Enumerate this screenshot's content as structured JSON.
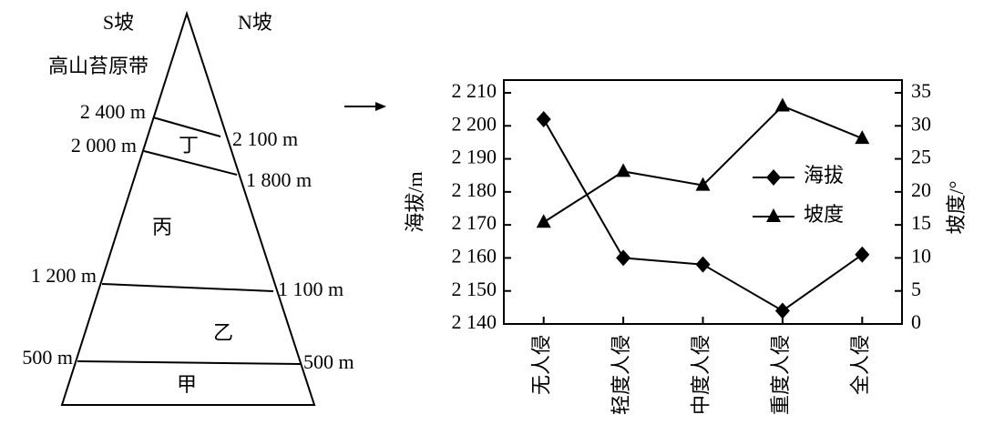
{
  "diagram": {
    "slope_labels": [
      "S坡",
      "N坡"
    ],
    "top_label": "高山苔原带",
    "left_labels": [
      "2 400 m",
      "2 000 m",
      "1 200 m",
      "500 m"
    ],
    "right_labels": [
      "2 100 m",
      "1 800 m",
      "1 100 m",
      "500 m"
    ],
    "zones": [
      "丁",
      "丙",
      "乙",
      "甲"
    ]
  },
  "chart_data": {
    "type": "line",
    "categories": [
      "无人侵",
      "轻度人侵",
      "中度人侵",
      "重度人侵",
      "全人侵"
    ],
    "series": [
      {
        "name": "海拔",
        "color": "#000000",
        "marker": "diamond",
        "values": [
          2202,
          2160,
          2158,
          2144,
          2161
        ]
      },
      {
        "name": "坡度",
        "color": "#000000",
        "marker": "triangle",
        "axis": "y2",
        "values": [
          15.4,
          23.1,
          21,
          33,
          28.1
        ]
      }
    ],
    "ylabel": "海拔/m",
    "y2label": "坡度/°",
    "ylim": [
      2140,
      2210
    ],
    "yticks": [
      {
        "value": 2140,
        "label": "2 140"
      },
      {
        "value": 2150,
        "label": "2 150"
      },
      {
        "value": 2160,
        "label": "2 160"
      },
      {
        "value": 2170,
        "label": "2 170"
      },
      {
        "value": 2180,
        "label": "2 180"
      },
      {
        "value": 2190,
        "label": "2 190"
      },
      {
        "value": 2200,
        "label": "2 200"
      },
      {
        "value": 2210,
        "label": "2 210"
      }
    ],
    "y2lim": [
      0,
      35
    ],
    "y2ticks": [
      0,
      5,
      10,
      15,
      20,
      25,
      30,
      35
    ],
    "legend": "center right"
  }
}
